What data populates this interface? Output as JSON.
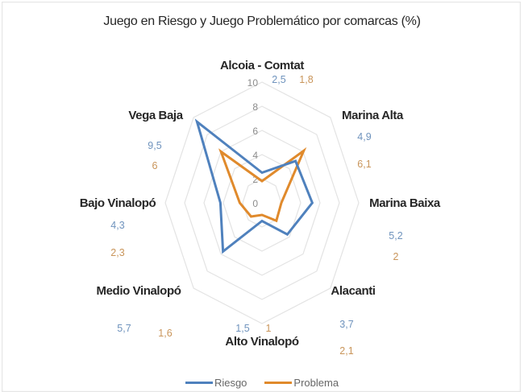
{
  "chart_data": {
    "type": "radar",
    "title": "Juego en Riesgo y Juego Problemático por comarcas (%)",
    "categories": [
      "Alcoia - Comtat",
      "Marina Alta",
      "Marina Baixa",
      "Alacanti",
      "Alto Vinalopó",
      "Medio Vinalopó",
      "Bajo Vinalopó",
      "Vega Baja"
    ],
    "series": [
      {
        "name": "Riesgo",
        "color": "#4f81bd",
        "values": [
          2.5,
          4.9,
          5.2,
          3.7,
          1.5,
          5.7,
          4.3,
          9.5
        ],
        "value_labels": [
          "2,5",
          "4,9",
          "5,2",
          "3,7",
          "1,5",
          "5,7",
          "4,3",
          "9,5"
        ]
      },
      {
        "name": "Problema",
        "color": "#e08a2c",
        "values": [
          1.8,
          6.1,
          2.0,
          2.1,
          1.0,
          1.6,
          2.3,
          6.0
        ],
        "value_labels": [
          "1,8",
          "6,1",
          "2",
          "2,1",
          "1",
          "1,6",
          "2,3",
          "6"
        ]
      }
    ],
    "radial_ticks": [
      0,
      2,
      4,
      6,
      8,
      10
    ],
    "radial_tick_labels": [
      "0",
      "2",
      "4",
      "6",
      "8",
      "10"
    ],
    "rlim": [
      0,
      10
    ],
    "grid": true,
    "legend_position": "bottom"
  },
  "legend": {
    "riesgo": "Riesgo",
    "problema": "Problema"
  }
}
